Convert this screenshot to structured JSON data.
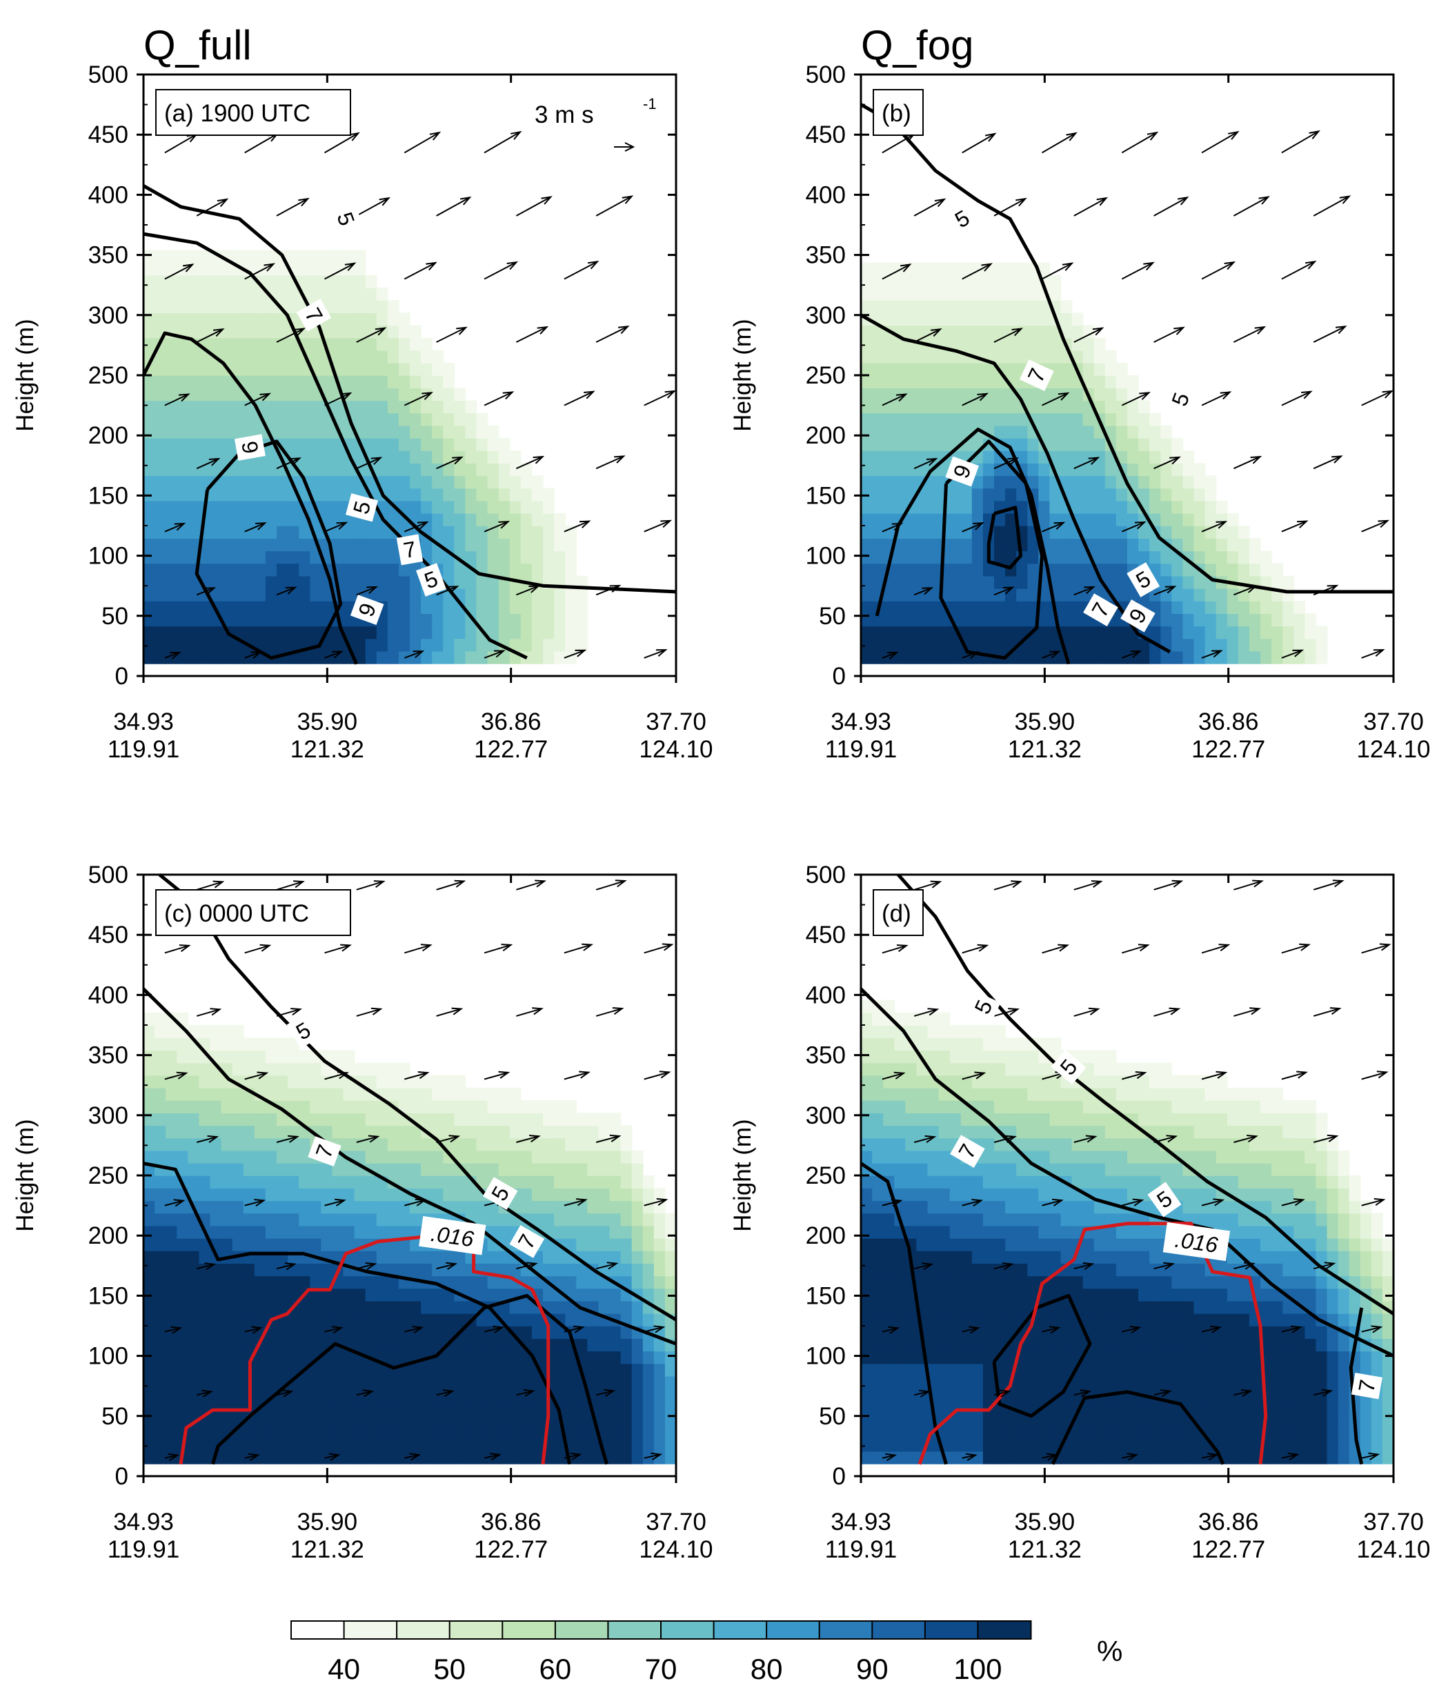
{
  "chart_data": {
    "type": "contour",
    "colorbar": {
      "unit": "%",
      "tick_labels": [
        "40",
        "50",
        "60",
        "70",
        "80",
        "90",
        "100"
      ],
      "levels": [
        35,
        40,
        45,
        50,
        55,
        60,
        65,
        70,
        75,
        80,
        85,
        90,
        95,
        100,
        105
      ],
      "colors": [
        "#ffffff",
        "#f2f9ec",
        "#e4f3dc",
        "#d4ecc7",
        "#c1e4b7",
        "#a7d9b5",
        "#86ccc0",
        "#69bfc8",
        "#4faed0",
        "#3a97c9",
        "#2a7db9",
        "#1c64a5",
        "#0d4b8a",
        "#062f5e"
      ]
    },
    "vector_reference": {
      "text": "3 m s",
      "superscript": "-1"
    },
    "panels": [
      {
        "label": "(a) 1900 UTC",
        "title": "Q_full",
        "ylabel": "Height (m)",
        "ylim": [
          0,
          500
        ],
        "x_ticks": [
          {
            "lat": "34.93",
            "lon": "119.91"
          },
          {
            "lat": "35.90",
            "lon": "121.32"
          },
          {
            "lat": "36.86",
            "lon": "122.77"
          },
          {
            "lat": "37.70",
            "lon": "124.10"
          }
        ],
        "y_ticks": [
          "0",
          "50",
          "100",
          "150",
          "200",
          "250",
          "300",
          "350",
          "400",
          "450",
          "500"
        ],
        "contour_labels": [
          "5",
          "7",
          "9",
          "5",
          "7",
          "9",
          "5"
        ]
      },
      {
        "label": "(b)",
        "title": "Q_fog",
        "ylabel": "Height (m)",
        "ylim": [
          0,
          500
        ],
        "x_ticks": [
          {
            "lat": "34.93",
            "lon": "119.91"
          },
          {
            "lat": "35.90",
            "lon": "121.32"
          },
          {
            "lat": "36.86",
            "lon": "122.77"
          },
          {
            "lat": "37.70",
            "lon": "124.10"
          }
        ],
        "y_ticks": [
          "0",
          "50",
          "100",
          "150",
          "200",
          "250",
          "300",
          "350",
          "400",
          "450",
          "500"
        ],
        "contour_labels": [
          "5",
          "7",
          "5",
          "9",
          "9",
          "7",
          "5"
        ]
      },
      {
        "label": "(c) 0000 UTC",
        "title": "",
        "ylabel": "Height (m)",
        "ylim": [
          0,
          500
        ],
        "x_ticks": [
          {
            "lat": "34.93",
            "lon": "119.91"
          },
          {
            "lat": "35.90",
            "lon": "121.32"
          },
          {
            "lat": "36.86",
            "lon": "122.77"
          },
          {
            "lat": "37.70",
            "lon": "124.10"
          }
        ],
        "y_ticks": [
          "0",
          "50",
          "100",
          "150",
          "200",
          "250",
          "300",
          "350",
          "400",
          "450",
          "500"
        ],
        "contour_labels": [
          "5",
          "7",
          "5",
          "7"
        ],
        "red_contour_label": ".016"
      },
      {
        "label": "(d)",
        "title": "",
        "ylabel": "Height (m)",
        "ylim": [
          0,
          500
        ],
        "x_ticks": [
          {
            "lat": "34.93",
            "lon": "119.91"
          },
          {
            "lat": "35.90",
            "lon": "121.32"
          },
          {
            "lat": "36.86",
            "lon": "122.77"
          },
          {
            "lat": "37.70",
            "lon": "124.10"
          }
        ],
        "y_ticks": [
          "0",
          "50",
          "100",
          "150",
          "200",
          "250",
          "300",
          "350",
          "400",
          "450",
          "500"
        ],
        "contour_labels": [
          "5",
          "7",
          "5",
          "5",
          "7"
        ],
        "red_contour_label": ".016"
      }
    ]
  }
}
